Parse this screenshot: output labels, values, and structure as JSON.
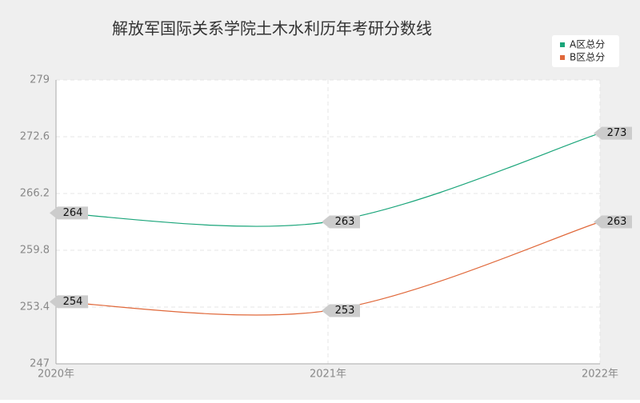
{
  "chart_data": {
    "type": "line",
    "title": "解放军国际关系学院土木水利历年考研分数线",
    "categories": [
      "2020年",
      "2021年",
      "2022年"
    ],
    "series": [
      {
        "name": "A区总分",
        "color": "#1aa57a",
        "values": [
          264,
          263,
          273
        ]
      },
      {
        "name": "B区总分",
        "color": "#e0683a",
        "values": [
          254,
          253,
          263
        ]
      }
    ],
    "ylim": [
      247,
      279
    ],
    "yticks": [
      247,
      253.4,
      259.8,
      266.2,
      272.6,
      279
    ],
    "grid": true,
    "legend": "top-right"
  }
}
